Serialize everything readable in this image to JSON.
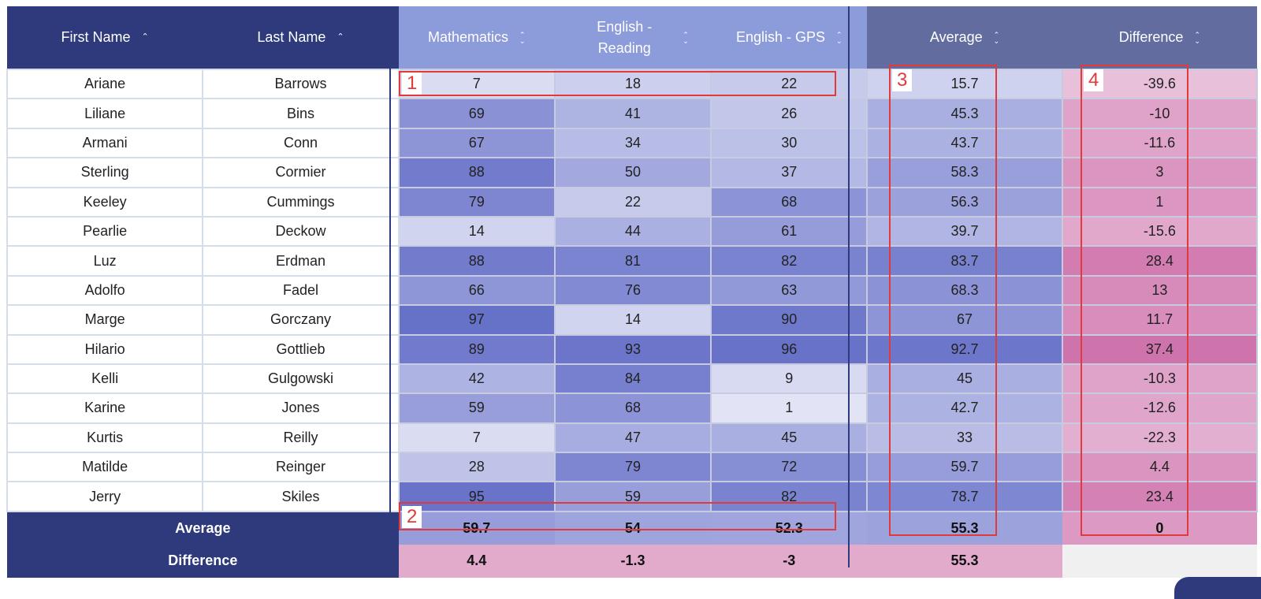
{
  "headers": {
    "first": "First Name",
    "last": "Last Name",
    "math": "Mathematics",
    "read": "English - Reading",
    "gps": "English - GPS",
    "avg": "Average",
    "diff": "Difference"
  },
  "rows": [
    {
      "first": "Ariane",
      "last": "Barrows",
      "math": "7",
      "read": "18",
      "gps": "22",
      "avg": "15.7",
      "diff": "-39.6"
    },
    {
      "first": "Liliane",
      "last": "Bins",
      "math": "69",
      "read": "41",
      "gps": "26",
      "avg": "45.3",
      "diff": "-10"
    },
    {
      "first": "Armani",
      "last": "Conn",
      "math": "67",
      "read": "34",
      "gps": "30",
      "avg": "43.7",
      "diff": "-11.6"
    },
    {
      "first": "Sterling",
      "last": "Cormier",
      "math": "88",
      "read": "50",
      "gps": "37",
      "avg": "58.3",
      "diff": "3"
    },
    {
      "first": "Keeley",
      "last": "Cummings",
      "math": "79",
      "read": "22",
      "gps": "68",
      "avg": "56.3",
      "diff": "1"
    },
    {
      "first": "Pearlie",
      "last": "Deckow",
      "math": "14",
      "read": "44",
      "gps": "61",
      "avg": "39.7",
      "diff": "-15.6"
    },
    {
      "first": "Luz",
      "last": "Erdman",
      "math": "88",
      "read": "81",
      "gps": "82",
      "avg": "83.7",
      "diff": "28.4"
    },
    {
      "first": "Adolfo",
      "last": "Fadel",
      "math": "66",
      "read": "76",
      "gps": "63",
      "avg": "68.3",
      "diff": "13"
    },
    {
      "first": "Marge",
      "last": "Gorczany",
      "math": "97",
      "read": "14",
      "gps": "90",
      "avg": "67",
      "diff": "11.7"
    },
    {
      "first": "Hilario",
      "last": "Gottlieb",
      "math": "89",
      "read": "93",
      "gps": "96",
      "avg": "92.7",
      "diff": "37.4"
    },
    {
      "first": "Kelli",
      "last": "Gulgowski",
      "math": "42",
      "read": "84",
      "gps": "9",
      "avg": "45",
      "diff": "-10.3"
    },
    {
      "first": "Karine",
      "last": "Jones",
      "math": "59",
      "read": "68",
      "gps": "1",
      "avg": "42.7",
      "diff": "-12.6"
    },
    {
      "first": "Kurtis",
      "last": "Reilly",
      "math": "7",
      "read": "47",
      "gps": "45",
      "avg": "33",
      "diff": "-22.3"
    },
    {
      "first": "Matilde",
      "last": "Reinger",
      "math": "28",
      "read": "79",
      "gps": "72",
      "avg": "59.7",
      "diff": "4.4"
    },
    {
      "first": "Jerry",
      "last": "Skiles",
      "math": "95",
      "read": "59",
      "gps": "82",
      "avg": "78.7",
      "diff": "23.4"
    }
  ],
  "footer": {
    "avg_label": "Average",
    "avg_math": "59.7",
    "avg_read": "54",
    "avg_gps": "52.3",
    "avg_avg": "55.3",
    "avg_diff": "0",
    "diff_label": "Difference",
    "diff_math": "4.4",
    "diff_read": "-1.3",
    "diff_gps": "-3",
    "diff_avg": "55.3"
  },
  "annotations": [
    "1",
    "2",
    "3",
    "4"
  ],
  "colors": {
    "header_dark": "#2e3a7c",
    "header_mid": "#8c9bd9",
    "header_grey": "#626c9f",
    "score_base": "#5b66c4",
    "diff_base": "#cc6aa8",
    "annotation": "#e03a3a"
  }
}
